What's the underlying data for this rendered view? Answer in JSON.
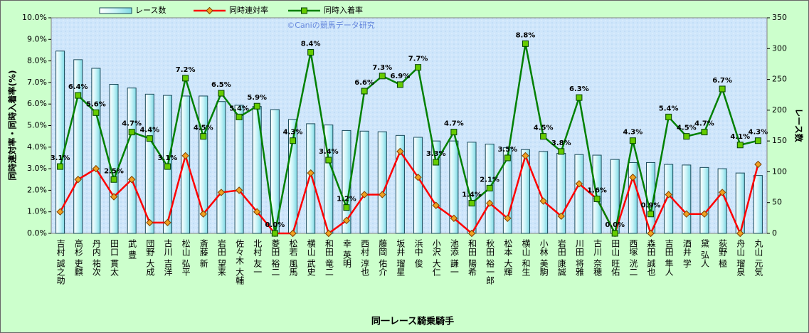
{
  "chart_data": {
    "type": "combo",
    "annotation": "©Caniの競馬データ研究",
    "x_label": "同一レース騎乗騎手",
    "y_label": "同時連対率・同時入着率(%)",
    "y2_label": "レース数",
    "categories": [
      "吉村 誠之助",
      "高杉 吏麒",
      "丹内 祐次",
      "田口 貫太",
      "武 豊",
      "団野 大成",
      "古川 吉洋",
      "松山 弘平",
      "斎藤 新",
      "岩田 望来",
      "佐々木 大輔",
      "北村 友一",
      "菱田 裕二",
      "松若 風馬",
      "横山 武史",
      "和田 竜二",
      "幸 英明",
      "西村 淳也",
      "藤岡 佑介",
      "坂井 瑠星",
      "浜中 俊",
      "小沢 大仁",
      "池添 謙一",
      "和田 陽希",
      "秋田 裕一郎",
      "松本 大輝",
      "横山 和生",
      "小林 美駒",
      "岩田 康誠",
      "川田 将雅",
      "古川 奈穂",
      "田山 旺佑",
      "西塚 洸二",
      "森田 誠也",
      "吉田 隼人",
      "酒井 学",
      "黛 弘人",
      "荻野 極",
      "舟山 瑠泉",
      "丸山 元気"
    ],
    "series": [
      {
        "name": "レース数",
        "type": "bar",
        "axis": "y2",
        "color": "#c8f4f8",
        "values": [
          296,
          282,
          268,
          242,
          236,
          226,
          224,
          223,
          223,
          214,
          208,
          206,
          201,
          185,
          178,
          176,
          167,
          166,
          165,
          159,
          156,
          150,
          150,
          148,
          145,
          139,
          136,
          133,
          130,
          128,
          127,
          120,
          115,
          115,
          112,
          111,
          107,
          105,
          98,
          94
        ]
      },
      {
        "name": "同時連対率",
        "type": "line",
        "color": "#ff0000",
        "marker": "diamond",
        "marker_color": "#f0a020",
        "values": [
          1.0,
          2.5,
          3.0,
          1.7,
          2.5,
          0.5,
          0.5,
          3.6,
          0.9,
          1.9,
          2.0,
          1.0,
          0,
          0,
          2.8,
          0,
          0.6,
          1.8,
          1.8,
          3.8,
          2.6,
          1.3,
          0.7,
          0,
          1.4,
          0.7,
          3.6,
          1.5,
          0.8,
          2.3,
          1.6,
          0,
          2.6,
          0,
          1.8,
          0.9,
          0.9,
          1.9,
          0,
          3.2
        ]
      },
      {
        "name": "同時入着率",
        "type": "line",
        "color": "#008000",
        "marker": "square",
        "marker_color": "#66cc00",
        "values": [
          3.1,
          6.4,
          5.6,
          2.5,
          4.7,
          4.4,
          3.1,
          7.2,
          4.5,
          6.5,
          5.4,
          5.9,
          0.0,
          4.3,
          8.4,
          3.4,
          1.2,
          6.6,
          7.3,
          6.9,
          7.7,
          3.3,
          4.7,
          1.4,
          2.1,
          3.5,
          8.8,
          4.5,
          3.8,
          6.3,
          1.6,
          0.0,
          4.3,
          0.9,
          5.4,
          4.5,
          4.7,
          6.7,
          4.1,
          4.3
        ],
        "value_labels": [
          "3.1%",
          "6.4%",
          "5.6%",
          "2.5%",
          "4.7%",
          "4.4%",
          "3.1%",
          "7.2%",
          "4.5%",
          "6.5%",
          "5.4%",
          "5.9%",
          "0.0%",
          "4.3%",
          "8.4%",
          "3.4%",
          "1.2%",
          "6.6%",
          "7.3%",
          "6.9%",
          "7.7%",
          "3.3%",
          "4.7%",
          "1.4%",
          "2.1%",
          "3.5%",
          "8.8%",
          "4.5%",
          "3.8%",
          "6.3%",
          "1.6%",
          "0.0%",
          "4.3%",
          "0.9%",
          "5.4%",
          "4.5%",
          "4.7%",
          "6.7%",
          "4.1%",
          "4.3%"
        ]
      }
    ],
    "ylim": [
      0,
      10
    ],
    "yticks": [
      {
        "value": 0,
        "label": "0.0%"
      },
      {
        "value": 1,
        "label": "1.0%"
      },
      {
        "value": 2,
        "label": "2.0%"
      },
      {
        "value": 3,
        "label": "3.0%"
      },
      {
        "value": 4,
        "label": "4.0%"
      },
      {
        "value": 5,
        "label": "5.0%"
      },
      {
        "value": 6,
        "label": "6.0%"
      },
      {
        "value": 7,
        "label": "7.0%"
      },
      {
        "value": 8,
        "label": "8.0%"
      },
      {
        "value": 9,
        "label": "9.0%"
      },
      {
        "value": 10,
        "label": "10.0%"
      }
    ],
    "y2lim": [
      0,
      350
    ],
    "y2ticks": [
      0,
      50,
      100,
      150,
      200,
      250,
      300,
      350
    ],
    "grid": false,
    "legend": "top"
  }
}
